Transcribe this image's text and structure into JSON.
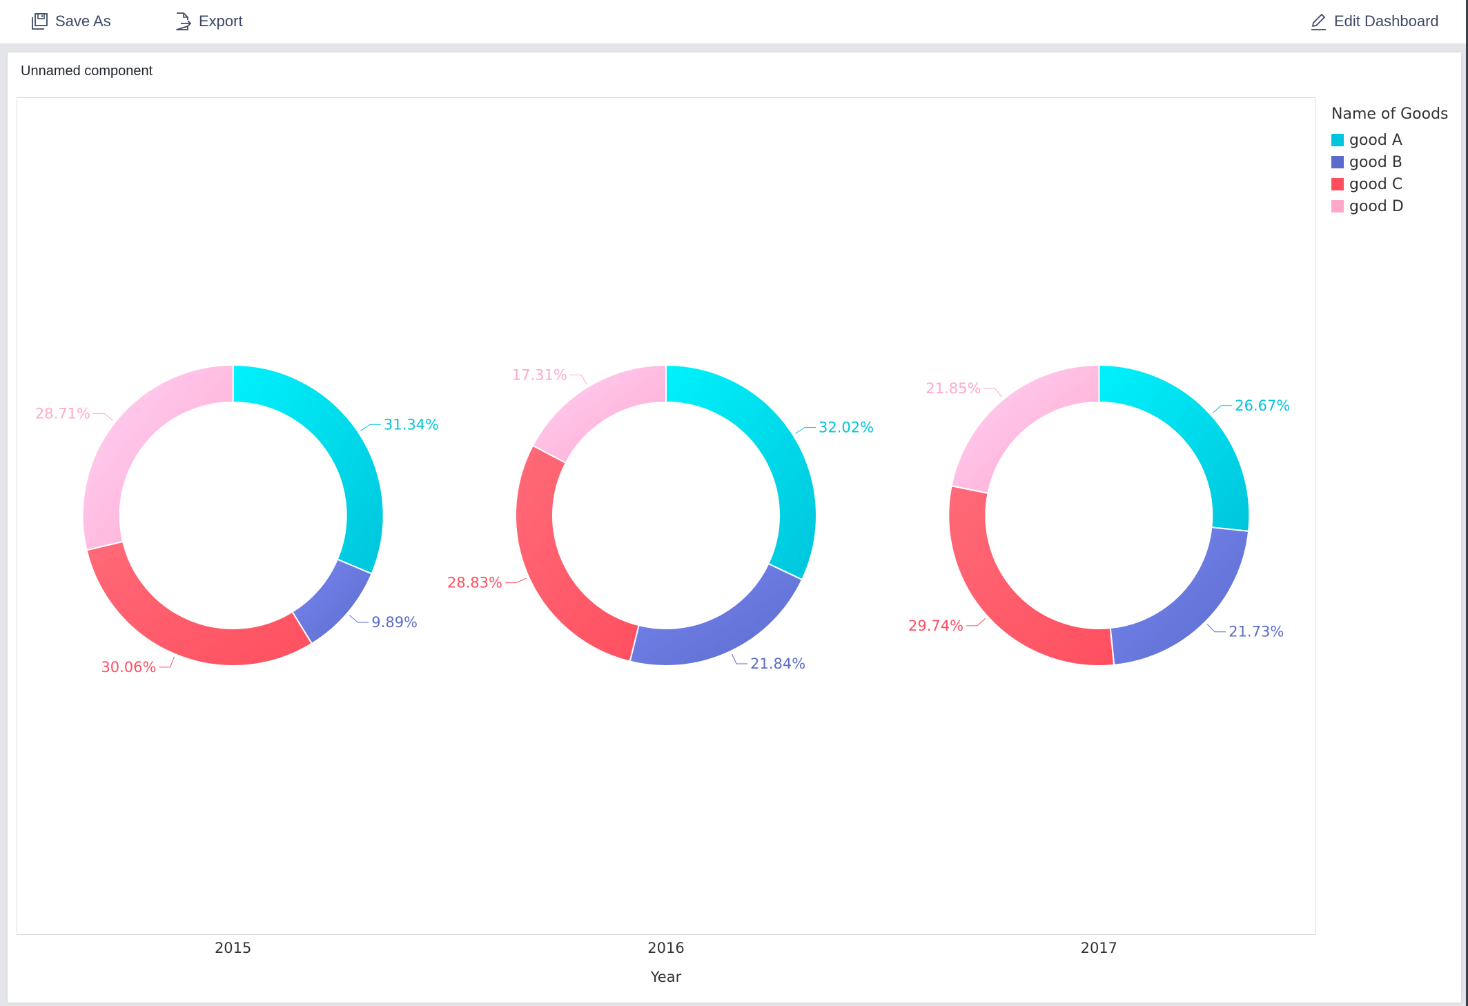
{
  "toolbar": {
    "save_as_label": "Save As",
    "export_label": "Export",
    "edit_dashboard_label": "Edit Dashboard",
    "icons": {
      "save_as": "floppy-disk-icon",
      "export": "export-file-icon",
      "edit": "pencil-icon"
    }
  },
  "card": {
    "title": "Unnamed component"
  },
  "legend": {
    "title": "Name of Goods",
    "items": [
      {
        "label": "good A",
        "color": "#00c5dc"
      },
      {
        "label": "good B",
        "color": "#5b6bcb"
      },
      {
        "label": "good C",
        "color": "#ff4f5f"
      },
      {
        "label": "good D",
        "color": "#ffa8cc"
      }
    ]
  },
  "chart_data": {
    "type": "pie",
    "subtype": "donut-multiples",
    "title": "Unnamed component",
    "xlabel": "Year",
    "ylabel": "",
    "categories": [
      "2015",
      "2016",
      "2017"
    ],
    "legend_title": "Name of Goods",
    "legend_position": "right",
    "series": [
      {
        "name": "good A",
        "values": [
          31.34,
          32.02,
          26.67
        ],
        "color": "#00c5dc"
      },
      {
        "name": "good B",
        "values": [
          9.89,
          21.84,
          21.73
        ],
        "color": "#5b6bcb"
      },
      {
        "name": "good C",
        "values": [
          30.06,
          28.83,
          29.74
        ],
        "color": "#ff4f5f"
      },
      {
        "name": "good D",
        "values": [
          28.71,
          17.31,
          21.85
        ],
        "color": "#ffa8cc"
      }
    ],
    "value_format": "percent",
    "donuts": [
      {
        "year": "2015",
        "labels": [
          "31.34%",
          "9.89%",
          "30.06%",
          "28.71%"
        ]
      },
      {
        "year": "2016",
        "labels": [
          "32.02%",
          "21.84%",
          "28.83%",
          "17.31%"
        ]
      },
      {
        "year": "2017",
        "labels": [
          "26.67%",
          "21.73%",
          "29.74%",
          "21.85%"
        ]
      }
    ]
  }
}
